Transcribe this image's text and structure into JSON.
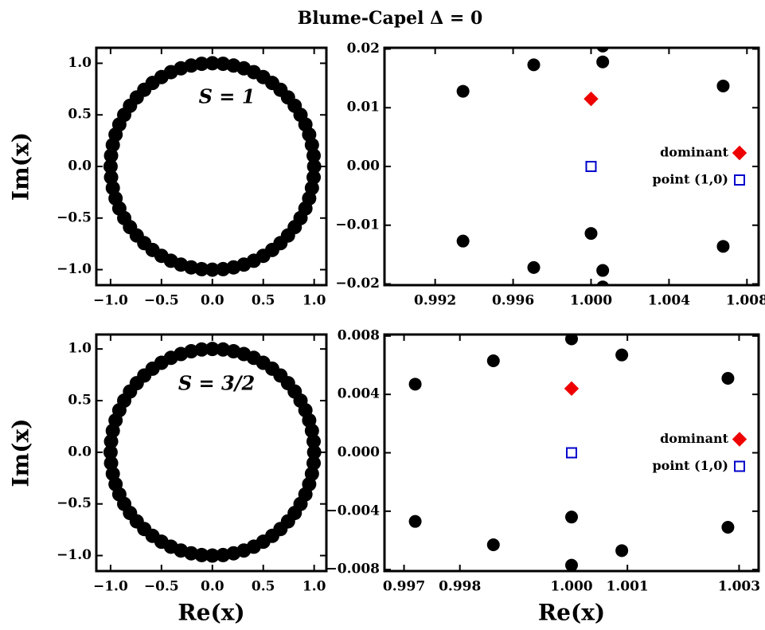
{
  "title": "Blume-Capel Δ = 0",
  "chart_data": [
    {
      "type": "scatter",
      "annotation": "S = 1",
      "y_label": "Im(x)",
      "xlim": [
        -1.14,
        1.12
      ],
      "ylim": [
        -1.15,
        1.15
      ],
      "xticks": [
        {
          "value": -1,
          "label": "−1.0"
        },
        {
          "value": -0.5,
          "label": "−0.5"
        },
        {
          "value": 0,
          "label": "0.0"
        },
        {
          "value": 0.5,
          "label": "0.5"
        },
        {
          "value": 1,
          "label": "1.0"
        }
      ],
      "yticks": [
        {
          "value": -1,
          "label": "−1.0"
        },
        {
          "value": -0.5,
          "label": "−0.5"
        },
        {
          "value": 0,
          "label": "0.0"
        },
        {
          "value": 0.5,
          "label": "0.5"
        },
        {
          "value": 1,
          "label": "1.0"
        }
      ],
      "grid": false,
      "series": [
        {
          "color": "#000000",
          "marker": "circle",
          "x": [
            1,
            0.995,
            0.978,
            0.951,
            0.914,
            0.866,
            0.809,
            0.743,
            0.669,
            0.588,
            0.5,
            0.407,
            0.309,
            0.208,
            0.105,
            0,
            -0.105,
            -0.208,
            -0.309,
            -0.407,
            -0.5,
            -0.588,
            -0.669,
            -0.743,
            -0.809,
            -0.866,
            -0.914,
            -0.951,
            -0.978,
            -0.995,
            -1,
            -0.995,
            -0.978,
            -0.951,
            -0.914,
            -0.866,
            -0.809,
            -0.743,
            -0.669,
            -0.588,
            -0.5,
            -0.407,
            -0.309,
            -0.208,
            -0.105,
            0,
            0.105,
            0.208,
            0.309,
            0.407,
            0.5,
            0.588,
            0.669,
            0.743,
            0.809,
            0.866,
            0.914,
            0.951,
            0.978,
            0.995
          ],
          "values": [
            0,
            0.105,
            0.208,
            0.309,
            0.407,
            0.5,
            0.588,
            0.669,
            0.743,
            0.809,
            0.866,
            0.914,
            0.951,
            0.978,
            0.995,
            1,
            0.995,
            0.978,
            0.951,
            0.914,
            0.866,
            0.809,
            0.743,
            0.669,
            0.588,
            0.5,
            0.407,
            0.309,
            0.208,
            0.105,
            0,
            -0.105,
            -0.208,
            -0.309,
            -0.407,
            -0.5,
            -0.588,
            -0.669,
            -0.743,
            -0.809,
            -0.866,
            -0.914,
            -0.951,
            -0.978,
            -0.995,
            -1,
            -0.995,
            -0.978,
            -0.951,
            -0.914,
            -0.866,
            -0.809,
            -0.743,
            -0.669,
            -0.588,
            -0.5,
            -0.407,
            -0.309,
            -0.208,
            -0.105
          ]
        }
      ]
    },
    {
      "type": "scatter",
      "xlim": [
        0.9894,
        1.0086
      ],
      "ylim": [
        -0.0202,
        0.0202
      ],
      "xticks": [
        0.992,
        0.996,
        {
          "value": 1,
          "label": "1.000"
        },
        1.004,
        1.008
      ],
      "yticks": [
        {
          "value": -0.02,
          "label": "−0.02"
        },
        {
          "value": -0.01,
          "label": "−0.01"
        },
        {
          "value": 0,
          "label": "0.00"
        },
        0.01,
        0.02
      ],
      "grid": false,
      "legend": "center right",
      "series": [
        {
          "color": "#000000",
          "marker": "circle",
          "x": [
            0.99343,
            0.99706,
            1.0006,
            1.0006,
            1.00678,
            0.99343,
            0.99706,
            1.0,
            1.0006,
            1.0006,
            1.00678
          ],
          "values": [
            0.0128,
            0.0173,
            0.0178,
            0.0205,
            0.0137,
            -0.0127,
            -0.0172,
            -0.0114,
            -0.0177,
            -0.0205,
            -0.0136
          ]
        },
        {
          "name": "dominant",
          "color": "#ee0000",
          "marker": "diamond",
          "x": [
            1.0
          ],
          "values": [
            0.0115
          ]
        },
        {
          "name": "point (1,0)",
          "color": "#0000cc",
          "marker": "square-open",
          "x": [
            1.0
          ],
          "values": [
            0.0
          ]
        }
      ]
    },
    {
      "type": "scatter",
      "annotation": "S = 3/2",
      "y_label": "Im(x)",
      "x_label": "Re(x)",
      "xlim": [
        -1.14,
        1.12
      ],
      "ylim": [
        -1.15,
        1.14
      ],
      "xticks": [
        {
          "value": -1,
          "label": "−1.0"
        },
        {
          "value": -0.5,
          "label": "−0.5"
        },
        {
          "value": 0,
          "label": "0.0"
        },
        {
          "value": 0.5,
          "label": "0.5"
        },
        {
          "value": 1,
          "label": "1.0"
        }
      ],
      "yticks": [
        {
          "value": -1,
          "label": "−1.0"
        },
        {
          "value": -0.5,
          "label": "−0.5"
        },
        {
          "value": 0,
          "label": "0.0"
        },
        {
          "value": 0.5,
          "label": "0.5"
        },
        {
          "value": 1,
          "label": "1.0"
        }
      ],
      "grid": false,
      "series": [
        {
          "color": "#000000",
          "marker": "circle",
          "x": [
            1,
            0.995,
            0.978,
            0.951,
            0.914,
            0.866,
            0.809,
            0.743,
            0.669,
            0.588,
            0.5,
            0.407,
            0.309,
            0.208,
            0.105,
            0,
            -0.105,
            -0.208,
            -0.309,
            -0.407,
            -0.5,
            -0.588,
            -0.669,
            -0.743,
            -0.809,
            -0.866,
            -0.914,
            -0.951,
            -0.978,
            -0.995,
            -1,
            -0.995,
            -0.978,
            -0.951,
            -0.914,
            -0.866,
            -0.809,
            -0.743,
            -0.669,
            -0.588,
            -0.5,
            -0.407,
            -0.309,
            -0.208,
            -0.105,
            0,
            0.105,
            0.208,
            0.309,
            0.407,
            0.5,
            0.588,
            0.669,
            0.743,
            0.809,
            0.866,
            0.914,
            0.951,
            0.978,
            0.995
          ],
          "values": [
            0,
            0.105,
            0.208,
            0.309,
            0.407,
            0.5,
            0.588,
            0.669,
            0.743,
            0.809,
            0.866,
            0.914,
            0.951,
            0.978,
            0.995,
            1,
            0.995,
            0.978,
            0.951,
            0.914,
            0.866,
            0.809,
            0.743,
            0.669,
            0.588,
            0.5,
            0.407,
            0.309,
            0.208,
            0.105,
            0,
            -0.105,
            -0.208,
            -0.309,
            -0.407,
            -0.5,
            -0.588,
            -0.669,
            -0.743,
            -0.809,
            -0.866,
            -0.914,
            -0.951,
            -0.978,
            -0.995,
            -1,
            -0.995,
            -0.978,
            -0.951,
            -0.914,
            -0.866,
            -0.809,
            -0.743,
            -0.669,
            -0.588,
            -0.5,
            -0.407,
            -0.309,
            -0.208,
            -0.105
          ]
        }
      ]
    },
    {
      "type": "scatter",
      "x_label": "Re(x)",
      "xlim": [
        0.99665,
        1.00335
      ],
      "ylim": [
        -0.0081,
        0.0081
      ],
      "xticks": [
        0.997,
        0.998,
        {
          "value": 1,
          "label": "1.000"
        },
        1.001,
        1.003
      ],
      "yticks": [
        {
          "value": -0.008,
          "label": "−0.008"
        },
        {
          "value": -0.004,
          "label": "−0.004"
        },
        {
          "value": 0,
          "label": "0.000"
        },
        0.004,
        0.008
      ],
      "grid": false,
      "legend": "center right",
      "series": [
        {
          "color": "#000000",
          "marker": "circle",
          "x": [
            0.9972,
            0.9986,
            1.0,
            1.0009,
            1.0028,
            0.9972,
            0.9986,
            1.0,
            1.0009,
            1.0028,
            1.0
          ],
          "values": [
            0.0047,
            0.0063,
            0.0078,
            0.0067,
            0.0051,
            -0.0047,
            -0.0063,
            -0.0077,
            -0.0067,
            -0.0051,
            -0.0044
          ]
        },
        {
          "name": "dominant",
          "color": "#ee0000",
          "marker": "diamond",
          "x": [
            1.0
          ],
          "values": [
            0.0044
          ]
        },
        {
          "name": "point (1,0)",
          "color": "#0000cc",
          "marker": "square-open",
          "x": [
            1.0
          ],
          "values": [
            0.0
          ]
        }
      ]
    }
  ]
}
